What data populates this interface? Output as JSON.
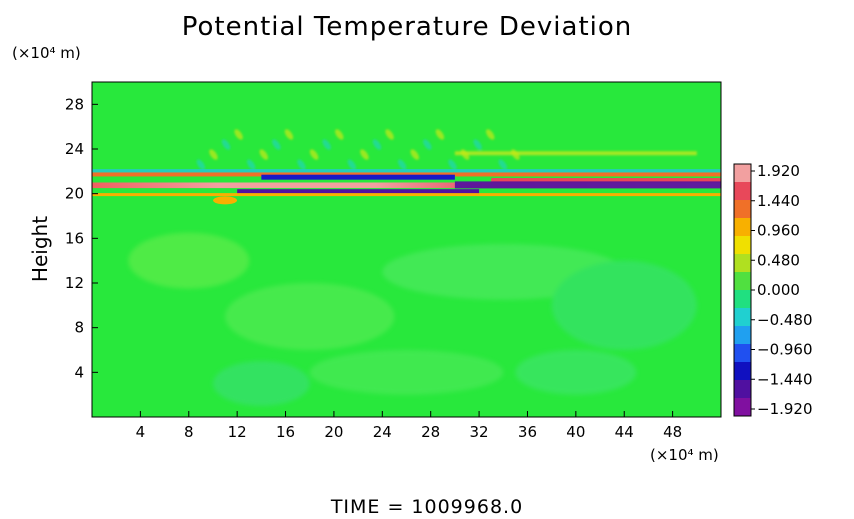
{
  "chart_data": {
    "type": "heatmap",
    "title": "Potential Temperature Deviation",
    "ylabel": "Height",
    "x_unit_label": "(×10⁴ m)",
    "y_unit_label": "(×10⁴ m)",
    "footer": "TIME  =  1009968.0",
    "xlim": [
      0,
      52
    ],
    "ylim": [
      0,
      30
    ],
    "x_ticks": [
      4,
      8,
      12,
      16,
      20,
      24,
      28,
      32,
      36,
      40,
      44,
      48
    ],
    "y_ticks": [
      4,
      8,
      12,
      16,
      20,
      24,
      28
    ],
    "colorbar": {
      "labels": [
        "1.920",
        "1.440",
        "0.960",
        "0.480",
        "0.000",
        "−0.480",
        "−0.960",
        "−1.440",
        "−1.920"
      ],
      "values": [
        1.92,
        1.44,
        0.96,
        0.48,
        0.0,
        -0.48,
        -0.96,
        -1.44,
        -1.92
      ],
      "colors_top_to_bottom": [
        "#f2a0a0",
        "#e8485a",
        "#f07028",
        "#f8b000",
        "#f0e000",
        "#b0e020",
        "#50e040",
        "#20e080",
        "#20d0d0",
        "#20a0f0",
        "#2050f0",
        "#1010c0",
        "#5010a0",
        "#8010a0"
      ]
    },
    "field_summary": {
      "background_value": 0.0,
      "background_color": "#28e83c",
      "band_center_height": 20.8,
      "band_height_range": [
        19.8,
        22.0
      ],
      "band_extrema": [
        -1.92,
        1.92
      ],
      "wave_region_height_range": [
        22,
        28
      ],
      "wave_region_x_range": [
        8,
        36
      ]
    }
  }
}
